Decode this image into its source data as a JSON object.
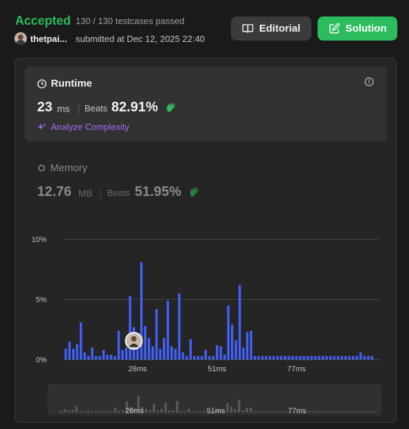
{
  "header": {
    "status": "Accepted",
    "testcases": "130 / 130 testcases passed",
    "username": "thetpai...",
    "submitted": "submitted at Dec 12, 2025 22:40",
    "editorial_label": "Editorial",
    "solution_label": "Solution"
  },
  "runtime": {
    "title": "Runtime",
    "value": "23",
    "unit": "ms",
    "beats_label": "Beats",
    "beats_value": "82.91%",
    "analyze_label": "Analyze Complexity"
  },
  "memory": {
    "title": "Memory",
    "value": "12.76",
    "unit": "MB",
    "beats_label": "Beats",
    "beats_value": "51.95%"
  },
  "colors": {
    "accent_green": "#2cbb5d",
    "bar_blue": "#4262ff",
    "purple": "#a76ef5"
  },
  "chart_data": {
    "type": "bar",
    "title": "",
    "xlabel": "",
    "ylabel": "",
    "y_ticks": [
      "0%",
      "5%",
      "10%"
    ],
    "ylim": [
      0,
      10
    ],
    "x_ticks": [
      {
        "label": "26ms",
        "index": 19
      },
      {
        "label": "51ms",
        "index": 40
      },
      {
        "label": "77ms",
        "index": 61
      }
    ],
    "current_user_index": 18,
    "values": [
      0.9,
      1.5,
      0.9,
      1.3,
      3.1,
      0.6,
      0.3,
      1.0,
      0.3,
      0.3,
      0.8,
      0.4,
      0.4,
      0.3,
      2.4,
      0.8,
      1.0,
      5.3,
      2.7,
      1.8,
      8.1,
      2.8,
      1.8,
      1.1,
      4.2,
      0.9,
      1.8,
      4.9,
      1.1,
      0.9,
      5.5,
      0.6,
      0.3,
      1.7,
      0.3,
      0.3,
      0.3,
      0.8,
      0.3,
      0.3,
      1.2,
      1.1,
      0.4,
      4.5,
      2.9,
      1.6,
      6.2,
      1.0,
      2.3,
      2.4,
      0.3,
      0.3,
      0.3,
      0.3,
      0.3,
      0.3,
      0.3,
      0.3,
      0.3,
      0.3,
      0.3,
      0.3,
      0.3,
      0.3,
      0.3,
      0.3,
      0.3,
      0.3,
      0.3,
      0.3,
      0.3,
      0.3,
      0.3,
      0.3,
      0.3,
      0.3,
      0.3,
      0.3,
      0.6,
      0.3,
      0.3,
      0.3
    ],
    "nav_ticks": [
      "26ms",
      "51ms",
      "77ms"
    ]
  }
}
